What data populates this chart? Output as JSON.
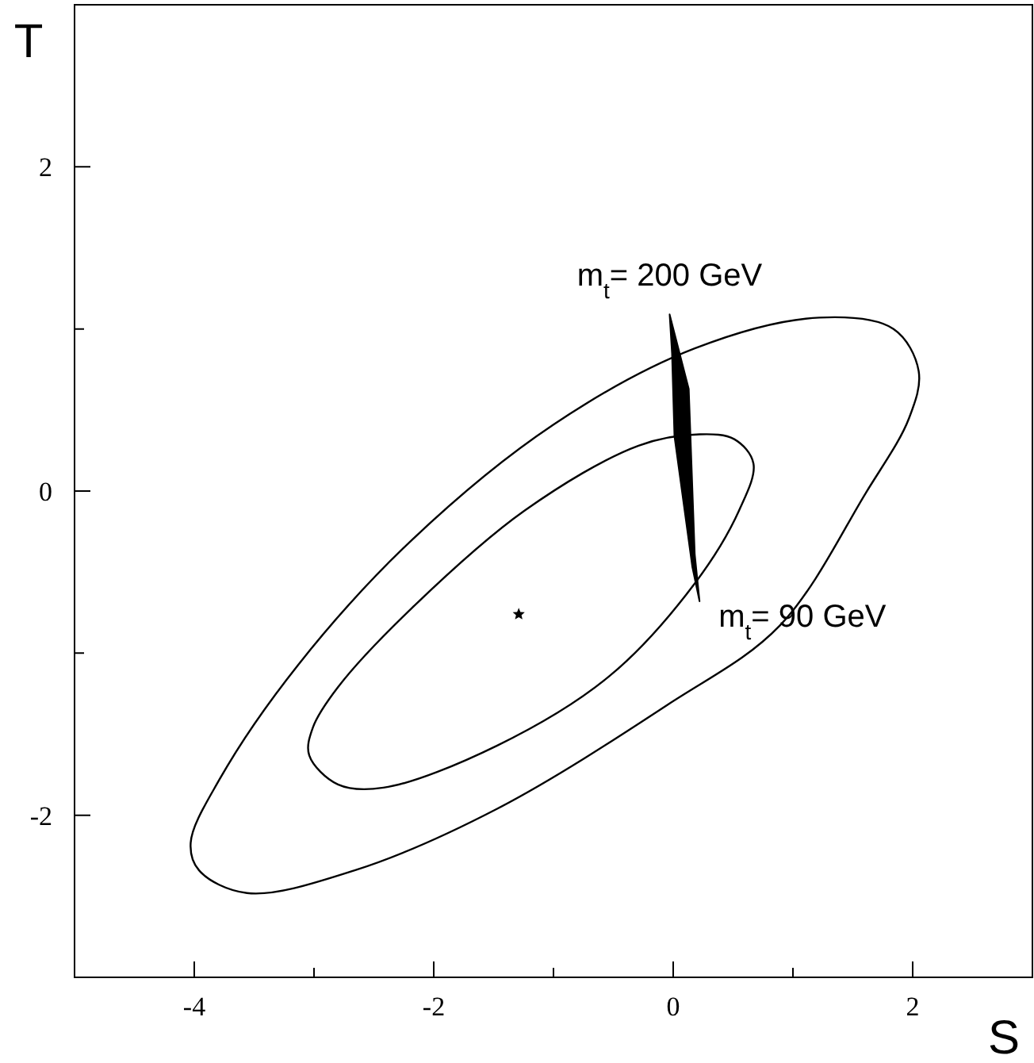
{
  "chart_data": {
    "type": "area",
    "xlabel": "S",
    "ylabel": "T",
    "xlim": [
      -5,
      3
    ],
    "ylim": [
      -3,
      3
    ],
    "xticks": [
      -4,
      {
        "value": -3,
        "label": null
      },
      -2,
      {
        "value": -1,
        "label": null
      },
      0,
      {
        "value": 1,
        "label": null
      },
      2
    ],
    "yticks": [
      {
        "value": -3,
        "label": null
      },
      -2,
      {
        "value": -1,
        "label": null
      },
      0,
      {
        "value": 1,
        "label": null
      },
      2,
      {
        "value": 3,
        "label": null
      }
    ],
    "grid": false,
    "series": [
      {
        "color": "#000000",
        "x": [
          -0.03,
          0.13,
          0.18,
          0.22,
          0.16,
          0.01,
          -0.01,
          -0.03
        ],
        "values": [
          1.09,
          0.63,
          -0.39,
          -0.68,
          -0.47,
          0.34,
          0.85,
          1.09
        ]
      },
      {
        "type": "scatter",
        "color": "#000000",
        "marker": "star",
        "x": [
          -1.29
        ],
        "values": [
          -0.76
        ]
      }
    ],
    "annotations": [
      {
        "text": "m$_{t}$= 200 GeV",
        "x": -0.03,
        "y": 1.09
      },
      {
        "text": "m$_{t}$= 90 GeV",
        "x": 0.22,
        "y": -0.68
      }
    ]
  }
}
